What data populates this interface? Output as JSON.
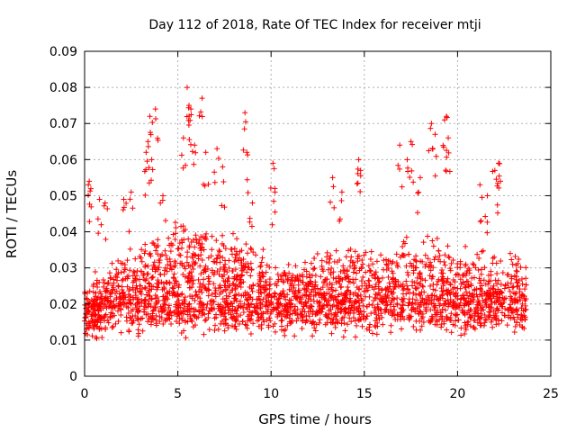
{
  "chart_data": {
    "type": "scatter",
    "title": "Day 112 of 2018, Rate Of TEC Index for receiver mtji",
    "xlabel": "GPS time / hours",
    "ylabel": "ROTI / TECUs",
    "xlim": [
      0,
      25
    ],
    "ylim": [
      0,
      0.09
    ],
    "x_ticks": [
      0,
      5,
      10,
      15,
      20,
      25
    ],
    "x_tick_labels": [
      "0",
      "5",
      "10",
      "15",
      "20",
      "25"
    ],
    "y_ticks": [
      0,
      0.01,
      0.02,
      0.03,
      0.04,
      0.05,
      0.06,
      0.07,
      0.08,
      0.09
    ],
    "y_tick_labels": [
      "0",
      "0.01",
      "0.02",
      "0.03",
      "0.04",
      "0.05",
      "0.06",
      "0.07",
      "0.08",
      "0.09"
    ],
    "grid": true,
    "marker": "+",
    "series_color": "#ff0000",
    "data_x_range": [
      0,
      23.7
    ],
    "series": [
      {
        "name": "ROTI",
        "note": "dense band mostly between 0.007 and 0.035 TECU/s across the day; outliers listed below",
        "outliers": [
          [
            0.2,
            0.053
          ],
          [
            0.25,
            0.054
          ],
          [
            0.8,
            0.049
          ],
          [
            1.1,
            0.048
          ],
          [
            2.1,
            0.049
          ],
          [
            2.5,
            0.051
          ],
          [
            3.3,
            0.062
          ],
          [
            3.4,
            0.065
          ],
          [
            3.5,
            0.072
          ],
          [
            3.6,
            0.06
          ],
          [
            3.8,
            0.074
          ],
          [
            4.2,
            0.05
          ],
          [
            5.3,
            0.066
          ],
          [
            5.5,
            0.08
          ],
          [
            5.6,
            0.075
          ],
          [
            5.7,
            0.074
          ],
          [
            5.9,
            0.064
          ],
          [
            6.3,
            0.077
          ],
          [
            6.5,
            0.062
          ],
          [
            7.1,
            0.063
          ],
          [
            7.4,
            0.058
          ],
          [
            8.6,
            0.073
          ],
          [
            8.7,
            0.062
          ],
          [
            9.0,
            0.048
          ],
          [
            10.1,
            0.059
          ],
          [
            10.2,
            0.052
          ],
          [
            13.3,
            0.055
          ],
          [
            13.8,
            0.051
          ],
          [
            14.7,
            0.06
          ],
          [
            14.8,
            0.057
          ],
          [
            16.9,
            0.064
          ],
          [
            17.3,
            0.06
          ],
          [
            17.5,
            0.065
          ],
          [
            18.0,
            0.055
          ],
          [
            18.6,
            0.07
          ],
          [
            18.8,
            0.067
          ],
          [
            19.3,
            0.071
          ],
          [
            19.4,
            0.072
          ],
          [
            19.5,
            0.066
          ],
          [
            21.2,
            0.053
          ],
          [
            21.6,
            0.05
          ],
          [
            22.0,
            0.057
          ],
          [
            22.2,
            0.059
          ],
          [
            22.3,
            0.054
          ]
        ]
      }
    ]
  }
}
